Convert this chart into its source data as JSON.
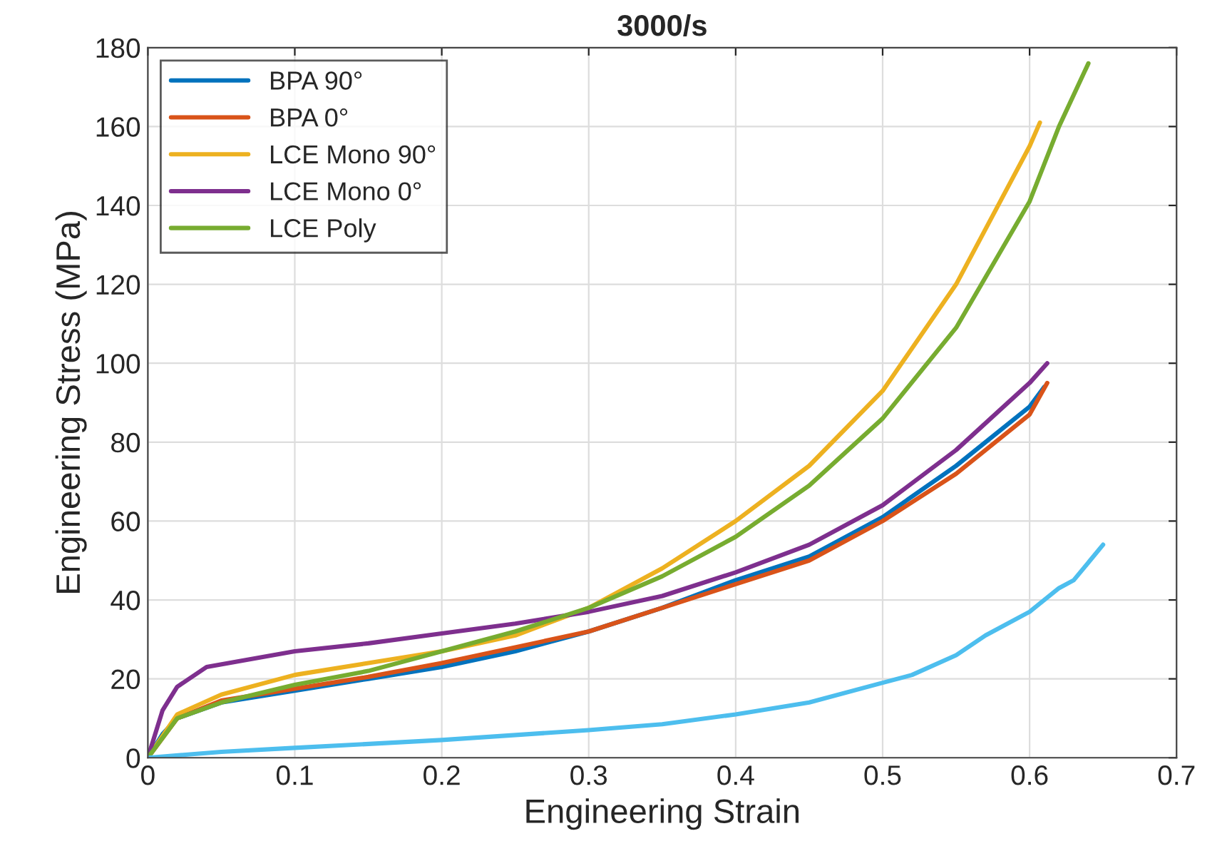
{
  "chart_data": {
    "type": "line",
    "title": "3000/s",
    "xlabel": "Engineering Strain",
    "ylabel": "Engineering Stress (MPa)",
    "xlim": [
      0,
      0.7
    ],
    "xticks": [
      0,
      0.1,
      0.2,
      0.3,
      0.4,
      0.5,
      0.6,
      0.7
    ],
    "ylim": [
      0,
      180
    ],
    "yticks": [
      0,
      20,
      40,
      60,
      80,
      100,
      120,
      140,
      160,
      180
    ],
    "grid": true,
    "legend": "top left",
    "line_style": "solid",
    "series": [
      {
        "name": "BPA 90°",
        "color": "#0072bd",
        "x": [
          0,
          0.01,
          0.02,
          0.05,
          0.1,
          0.15,
          0.2,
          0.25,
          0.3,
          0.35,
          0.4,
          0.45,
          0.5,
          0.55,
          0.6,
          0.61
        ],
        "values": [
          0,
          6,
          10,
          14,
          17,
          20,
          23,
          27,
          32,
          38,
          45,
          51,
          61,
          74,
          89,
          94
        ]
      },
      {
        "name": "BPA 0°",
        "color": "#d95319",
        "x": [
          0,
          0.02,
          0.05,
          0.1,
          0.15,
          0.2,
          0.25,
          0.3,
          0.35,
          0.4,
          0.45,
          0.5,
          0.55,
          0.6,
          0.612
        ],
        "values": [
          0,
          10,
          14.5,
          17.5,
          20.5,
          24,
          28,
          32,
          38,
          44,
          50,
          60,
          72,
          87,
          95
        ]
      },
      {
        "name": "LCE Mono 90°",
        "color": "#edb120",
        "x": [
          0,
          0.02,
          0.05,
          0.1,
          0.15,
          0.2,
          0.25,
          0.3,
          0.35,
          0.4,
          0.45,
          0.5,
          0.55,
          0.6,
          0.607
        ],
        "values": [
          0,
          11,
          16,
          21,
          24,
          27,
          31,
          38,
          48,
          60,
          74,
          93,
          120,
          155,
          161
        ]
      },
      {
        "name": "LCE Mono 0°",
        "color": "#7e2f8e",
        "x": [
          0,
          0.01,
          0.02,
          0.04,
          0.07,
          0.1,
          0.15,
          0.2,
          0.25,
          0.3,
          0.35,
          0.4,
          0.45,
          0.5,
          0.55,
          0.6,
          0.612
        ],
        "values": [
          0,
          12,
          18,
          23,
          25,
          27,
          29,
          31.5,
          34,
          37,
          41,
          47,
          54,
          64,
          78,
          95,
          100
        ]
      },
      {
        "name": "LCE Poly",
        "color": "#77ac30",
        "x": [
          0,
          0.02,
          0.05,
          0.1,
          0.15,
          0.2,
          0.25,
          0.3,
          0.35,
          0.4,
          0.45,
          0.5,
          0.55,
          0.6,
          0.62,
          0.64
        ],
        "values": [
          0,
          10,
          14,
          18.5,
          22,
          27,
          32,
          38,
          46,
          56,
          69,
          86,
          109,
          141,
          160,
          176
        ]
      },
      {
        "color": "#4dbeee",
        "x": [
          0,
          0.05,
          0.1,
          0.2,
          0.3,
          0.35,
          0.4,
          0.45,
          0.5,
          0.52,
          0.55,
          0.57,
          0.6,
          0.62,
          0.63,
          0.65
        ],
        "values": [
          0,
          1.5,
          2.5,
          4.5,
          7,
          8.5,
          11,
          14,
          19,
          21,
          26,
          31,
          37,
          43,
          45,
          54
        ]
      }
    ]
  }
}
